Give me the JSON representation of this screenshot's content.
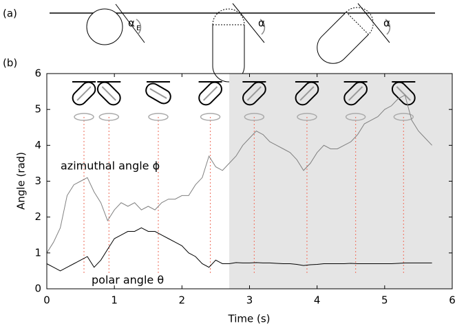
{
  "diagram": {
    "label": "(a)",
    "angles": [
      "α",
      "α",
      "α"
    ],
    "subscript": "E"
  },
  "chart_data": {
    "type": "line",
    "panel_label": "(b)",
    "xlabel": "Time (s)",
    "ylabel": "Angle (rad)",
    "x": [
      0,
      0.1,
      0.2,
      0.3,
      0.4,
      0.5,
      0.6,
      0.7,
      0.8,
      0.9,
      1.0,
      1.1,
      1.2,
      1.3,
      1.4,
      1.5,
      1.6,
      1.7,
      1.8,
      1.9,
      2.0,
      2.1,
      2.2,
      2.3,
      2.4,
      2.5,
      2.6,
      2.7,
      2.8,
      2.9,
      3.0,
      3.1,
      3.2,
      3.3,
      3.4,
      3.5,
      3.6,
      3.7,
      3.8,
      3.9,
      4.0,
      4.1,
      4.2,
      4.3,
      4.4,
      4.5,
      4.6,
      4.7,
      4.8,
      4.9,
      5.0,
      5.1,
      5.2,
      5.3,
      5.4,
      5.5,
      5.6,
      5.7
    ],
    "series": [
      {
        "name": "azimuthal angle ϕ",
        "color": "#808080",
        "values": [
          1.0,
          1.3,
          1.7,
          2.6,
          2.9,
          3.0,
          3.1,
          2.7,
          2.4,
          1.9,
          2.2,
          2.4,
          2.3,
          2.4,
          2.2,
          2.3,
          2.2,
          2.4,
          2.5,
          2.5,
          2.6,
          2.6,
          2.9,
          3.1,
          3.7,
          3.4,
          3.3,
          3.5,
          3.7,
          4.0,
          4.2,
          4.4,
          4.3,
          4.1,
          4.0,
          3.9,
          3.8,
          3.6,
          3.3,
          3.5,
          3.8,
          4.0,
          3.9,
          3.9,
          4.0,
          4.1,
          4.3,
          4.6,
          4.7,
          4.8,
          5.0,
          5.1,
          5.3,
          5.4,
          4.7,
          4.4,
          4.2,
          4.0
        ]
      },
      {
        "name": "polar angle θ",
        "color": "#000000",
        "values": [
          0.7,
          0.6,
          0.5,
          0.6,
          0.7,
          0.8,
          0.9,
          0.6,
          0.8,
          1.1,
          1.4,
          1.5,
          1.6,
          1.6,
          1.7,
          1.6,
          1.6,
          1.5,
          1.4,
          1.3,
          1.2,
          1.0,
          0.9,
          0.7,
          0.6,
          0.8,
          0.7,
          0.7,
          0.73,
          0.72,
          0.72,
          0.73,
          0.72,
          0.72,
          0.71,
          0.7,
          0.7,
          0.68,
          0.65,
          0.67,
          0.68,
          0.7,
          0.7,
          0.7,
          0.7,
          0.71,
          0.7,
          0.7,
          0.7,
          0.7,
          0.7,
          0.7,
          0.71,
          0.72,
          0.72,
          0.72,
          0.72,
          0.72
        ]
      }
    ],
    "xlim": [
      0,
      6
    ],
    "ylim": [
      0,
      6
    ],
    "xticks": [
      0,
      1,
      2,
      3,
      4,
      5,
      6
    ],
    "yticks": [
      0,
      1,
      2,
      3,
      4,
      5,
      6
    ],
    "shaded_region": [
      2.7,
      6
    ],
    "shade_color": "#e5e5e5",
    "marker_lines": [
      0.55,
      0.92,
      1.65,
      2.42,
      3.07,
      3.85,
      4.57,
      5.28
    ],
    "marker_color": "#f08070"
  }
}
